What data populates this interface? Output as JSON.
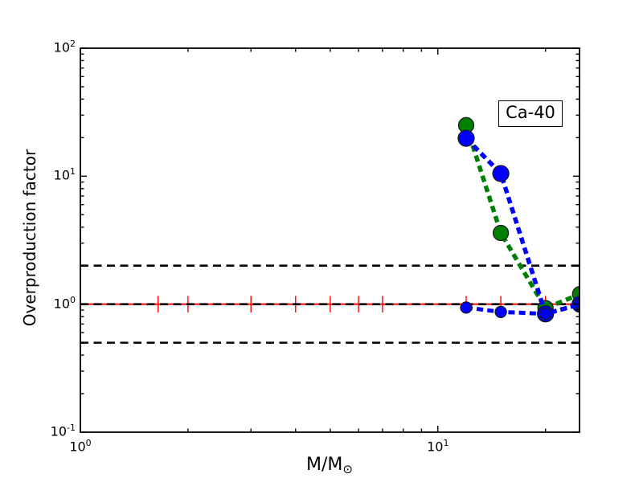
{
  "figure": {
    "background": "#ffffff"
  },
  "chart_data": {
    "type": "line",
    "annotation": "Ca-40",
    "xlabel_main": "M/M",
    "xlabel_sub": "⊙",
    "ylabel": "Overproduction factor",
    "x_scale": "log",
    "y_scale": "log",
    "xlim": [
      1,
      24.9
    ],
    "ylim": [
      0.1,
      100
    ],
    "x_tick_exponents": [
      0,
      1
    ],
    "y_tick_exponents": [
      2,
      1,
      0,
      -1
    ],
    "x_major_ticks": [
      1,
      10
    ],
    "x_minor_ticks": [
      2,
      3,
      4,
      5,
      6,
      7,
      8,
      9,
      20
    ],
    "y_major_ticks": [
      0.1,
      1,
      10,
      100
    ],
    "grid": false,
    "legend": "none",
    "reference_lines": [
      {
        "name": "upper-factor-2",
        "y": 2,
        "color": "#000000",
        "style": "dashed",
        "width": 2.6
      },
      {
        "name": "unity-line",
        "y": 1,
        "color": "#000000",
        "style": "dashed",
        "width": 2.6
      },
      {
        "name": "lower-factor-2",
        "y": 0.5,
        "color": "#000000",
        "style": "dashed",
        "width": 2.6
      }
    ],
    "errorbar_series": {
      "name": "solar-reference-errorbars",
      "color": "#ff0000",
      "y": 1.0,
      "x": [
        1.65,
        2,
        3,
        4,
        5,
        6,
        7,
        12,
        15,
        20,
        25
      ],
      "yerr_factor": 1.16,
      "line_width": 2
    },
    "series": [
      {
        "name": "green-model",
        "color": "#008000",
        "style": "dashed",
        "line_width": 5.5,
        "marker": "circle",
        "marker_radius": 9.5,
        "x": [
          12,
          15,
          20,
          25
        ],
        "y": [
          25,
          3.6,
          0.93,
          1.2
        ]
      },
      {
        "name": "blue-model",
        "color": "#0000ff",
        "style": "dashed",
        "line_width": 5.5,
        "marker": "circle",
        "marker_radius": 10,
        "x": [
          12,
          15,
          20,
          25
        ],
        "y": [
          19.8,
          10.5,
          0.84,
          1.0
        ]
      },
      {
        "name": "blue-model-flat",
        "color": "#0000ff",
        "style": "dashed",
        "line_width": 5,
        "marker": "circle",
        "marker_radius": 7,
        "x": [
          12,
          15,
          20,
          25
        ],
        "y": [
          0.94,
          0.87,
          0.84,
          1.0
        ]
      }
    ]
  }
}
